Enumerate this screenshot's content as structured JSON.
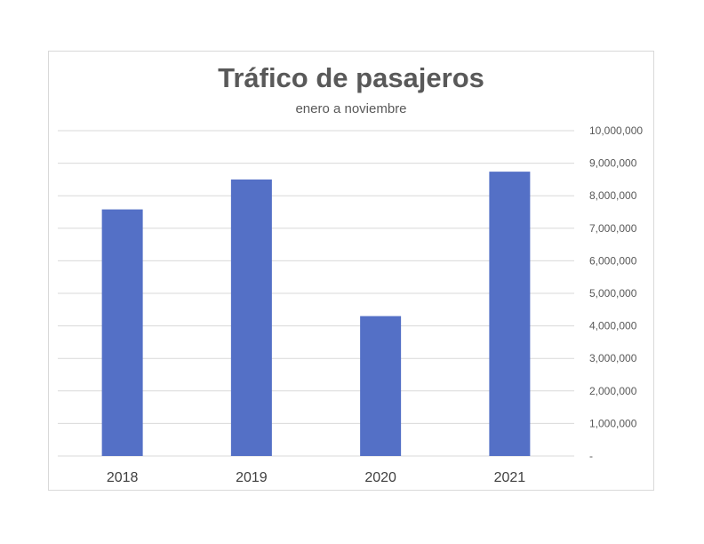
{
  "chart_data": {
    "type": "bar",
    "title": "Tráfico de pasajeros",
    "subtitle": "enero a noviembre",
    "categories": [
      "2018",
      "2019",
      "2020",
      "2021"
    ],
    "values": [
      7580000,
      8500000,
      4300000,
      8740000
    ],
    "ylim": [
      0,
      10000000
    ],
    "yticks": [
      "-",
      "1,000,000",
      "2,000,000",
      "3,000,000",
      "4,000,000",
      "5,000,000",
      "6,000,000",
      "7,000,000",
      "8,000,000",
      "9,000,000",
      "10,000,000"
    ],
    "y_axis_position": "right",
    "grid": true,
    "legend": "none",
    "bar_color": "#5470c6"
  }
}
